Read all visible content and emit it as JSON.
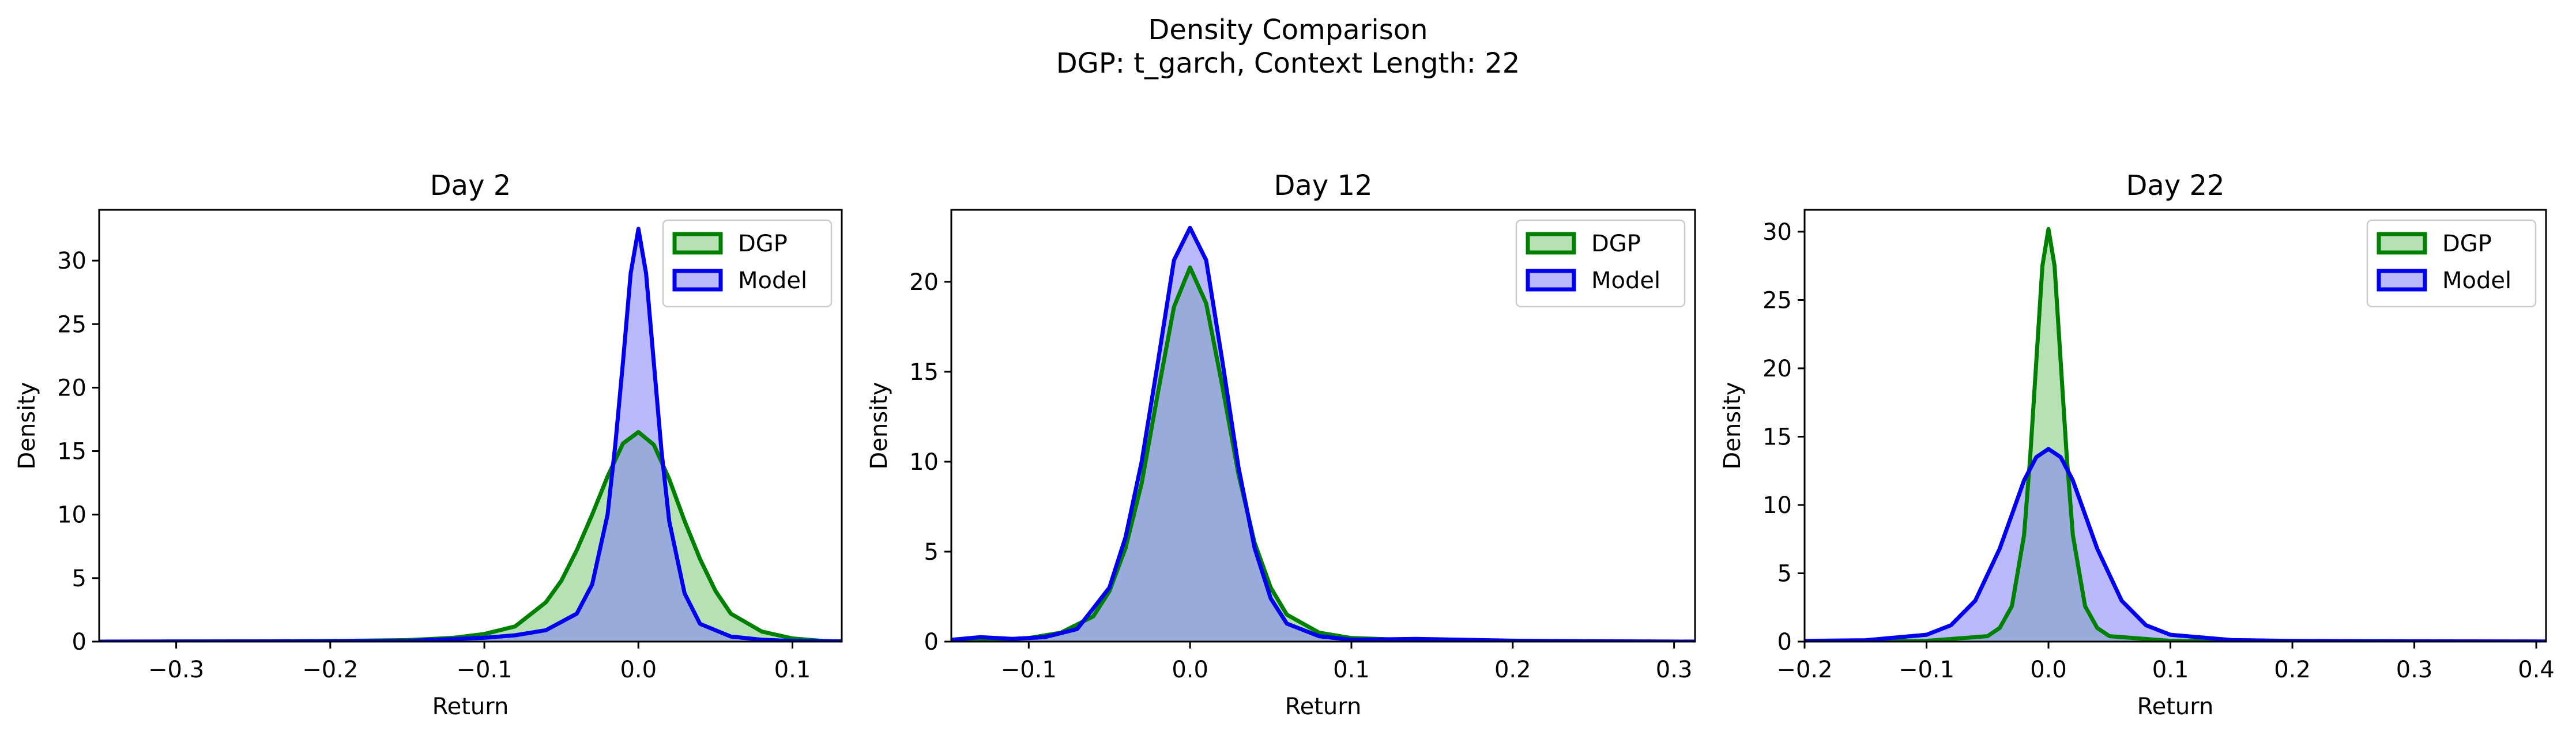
{
  "figure": {
    "title_line1": "Density Comparison",
    "title_line2": "DGP: t_garch, Context Length: 22"
  },
  "chart_data": [
    {
      "type": "area",
      "title": "Day 2",
      "xlabel": "Return",
      "ylabel": "Density",
      "xlim": [
        -0.35,
        0.132
      ],
      "ylim": [
        0,
        34
      ],
      "xticks": [
        -0.3,
        -0.2,
        -0.1,
        0.0,
        0.1
      ],
      "yticks": [
        0,
        5,
        10,
        15,
        20,
        25,
        30
      ],
      "legend": "top-right",
      "series": [
        {
          "name": "DGP",
          "color": "#008000",
          "fill": "#78c878",
          "x": [
            -0.35,
            -0.3,
            -0.25,
            -0.2,
            -0.15,
            -0.12,
            -0.1,
            -0.08,
            -0.06,
            -0.05,
            -0.04,
            -0.03,
            -0.02,
            -0.01,
            0.0,
            0.01,
            0.02,
            0.03,
            0.04,
            0.05,
            0.06,
            0.08,
            0.1,
            0.12,
            0.132
          ],
          "y": [
            0,
            0.01,
            0.02,
            0.05,
            0.12,
            0.3,
            0.6,
            1.2,
            3.1,
            4.8,
            7.2,
            10.0,
            13.0,
            15.6,
            16.5,
            15.5,
            12.8,
            9.5,
            6.5,
            4.0,
            2.2,
            0.8,
            0.25,
            0.05,
            0.02
          ]
        },
        {
          "name": "Model",
          "color": "#0000ee",
          "fill": "#8080f8",
          "x": [
            -0.35,
            -0.2,
            -0.15,
            -0.1,
            -0.08,
            -0.06,
            -0.04,
            -0.03,
            -0.02,
            -0.015,
            -0.01,
            -0.005,
            0.0,
            0.005,
            0.01,
            0.015,
            0.02,
            0.03,
            0.04,
            0.06,
            0.08,
            0.1,
            0.132
          ],
          "y": [
            0,
            0.02,
            0.05,
            0.3,
            0.5,
            0.9,
            2.2,
            4.5,
            10.0,
            15.5,
            22.0,
            29.0,
            32.5,
            29.0,
            22.0,
            15.0,
            9.5,
            3.8,
            1.4,
            0.4,
            0.15,
            0.05,
            0.01
          ]
        }
      ]
    },
    {
      "type": "area",
      "title": "Day 12",
      "xlabel": "Return",
      "ylabel": "Density",
      "xlim": [
        -0.148,
        0.313
      ],
      "ylim": [
        0,
        24
      ],
      "xticks": [
        -0.1,
        0.0,
        0.1,
        0.2,
        0.3
      ],
      "yticks": [
        0,
        5,
        10,
        15,
        20
      ],
      "legend": "top-right",
      "series": [
        {
          "name": "DGP",
          "color": "#008000",
          "fill": "#78c878",
          "x": [
            -0.148,
            -0.12,
            -0.1,
            -0.08,
            -0.06,
            -0.05,
            -0.04,
            -0.03,
            -0.02,
            -0.01,
            0.0,
            0.01,
            0.02,
            0.03,
            0.04,
            0.05,
            0.06,
            0.08,
            0.1,
            0.15,
            0.2,
            0.25,
            0.313
          ],
          "y": [
            0.05,
            0.1,
            0.2,
            0.5,
            1.4,
            2.8,
            5.2,
            8.8,
            13.8,
            18.6,
            20.8,
            18.8,
            14.2,
            9.3,
            5.5,
            3.0,
            1.5,
            0.5,
            0.2,
            0.05,
            0.02,
            0.01,
            0
          ]
        },
        {
          "name": "Model",
          "color": "#0000ee",
          "fill": "#8080f8",
          "x": [
            -0.148,
            -0.13,
            -0.11,
            -0.09,
            -0.07,
            -0.05,
            -0.04,
            -0.03,
            -0.02,
            -0.01,
            0.0,
            0.01,
            0.02,
            0.03,
            0.04,
            0.05,
            0.06,
            0.08,
            0.1,
            0.14,
            0.2,
            0.25,
            0.313
          ],
          "y": [
            0.1,
            0.25,
            0.15,
            0.25,
            0.7,
            3.0,
            5.8,
            10.0,
            15.5,
            21.2,
            23.0,
            21.2,
            15.6,
            9.7,
            5.2,
            2.4,
            1.0,
            0.3,
            0.1,
            0.15,
            0.05,
            0.02,
            0
          ]
        }
      ]
    },
    {
      "type": "area",
      "title": "Day 22",
      "xlabel": "Return",
      "ylabel": "Density",
      "xlim": [
        -0.2,
        0.408
      ],
      "ylim": [
        0,
        31.6
      ],
      "xticks": [
        -0.2,
        -0.1,
        0.0,
        0.1,
        0.2,
        0.3,
        0.4
      ],
      "yticks": [
        0,
        5,
        10,
        15,
        20,
        25,
        30
      ],
      "legend": "top-right",
      "series": [
        {
          "name": "DGP",
          "color": "#008000",
          "fill": "#78c878",
          "x": [
            -0.2,
            -0.1,
            -0.05,
            -0.04,
            -0.03,
            -0.02,
            -0.015,
            -0.01,
            -0.005,
            0.0,
            0.005,
            0.01,
            0.015,
            0.02,
            0.03,
            0.04,
            0.05,
            0.1,
            0.2,
            0.408
          ],
          "y": [
            0,
            0.05,
            0.4,
            1.0,
            2.6,
            7.8,
            13.5,
            20.5,
            27.5,
            30.2,
            27.5,
            20.5,
            13.5,
            7.8,
            2.6,
            1.0,
            0.4,
            0.05,
            0.01,
            0
          ]
        },
        {
          "name": "Model",
          "color": "#0000ee",
          "fill": "#8080f8",
          "x": [
            -0.2,
            -0.15,
            -0.1,
            -0.08,
            -0.06,
            -0.04,
            -0.03,
            -0.02,
            -0.01,
            0.0,
            0.01,
            0.02,
            0.03,
            0.04,
            0.06,
            0.08,
            0.1,
            0.15,
            0.2,
            0.3,
            0.408
          ],
          "y": [
            0.05,
            0.1,
            0.5,
            1.2,
            3.0,
            6.8,
            9.3,
            11.8,
            13.5,
            14.1,
            13.5,
            11.8,
            9.3,
            6.8,
            3.0,
            1.2,
            0.5,
            0.12,
            0.05,
            0.02,
            0.01
          ]
        }
      ]
    }
  ]
}
